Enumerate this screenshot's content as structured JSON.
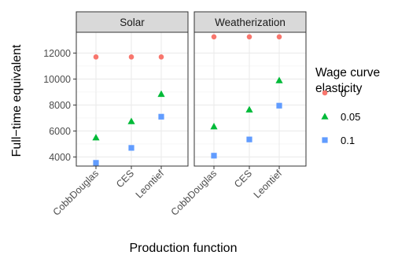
{
  "chart_data": {
    "type": "scatter",
    "facets": [
      "Solar",
      "Weatherization"
    ],
    "categories": [
      "CobbDouglas",
      "CES",
      "Leontief"
    ],
    "xlabel": "Production function",
    "ylabel": "Full−time equivalent",
    "ylim": [
      3300,
      13600
    ],
    "yticks": [
      4000,
      6000,
      8000,
      10000,
      12000
    ],
    "ytick_labels": [
      "4000",
      "6000",
      "8000",
      "10000",
      "12000"
    ],
    "legend": {
      "title": [
        "Wage curve",
        "elasticity"
      ],
      "position": "right",
      "entries": [
        {
          "label": "0",
          "color": "#F8766D",
          "shape": "circle"
        },
        {
          "label": "0.05",
          "color": "#00BA38",
          "shape": "triangle"
        },
        {
          "label": "0.1",
          "color": "#619CFF",
          "shape": "square"
        }
      ]
    },
    "series": [
      {
        "name": "0",
        "panels": {
          "Solar": [
            11700,
            11700,
            11700
          ],
          "Weatherization": [
            13250,
            13250,
            13250
          ]
        }
      },
      {
        "name": "0.05",
        "panels": {
          "Solar": [
            5500,
            6750,
            8850
          ],
          "Weatherization": [
            6350,
            7650,
            9900
          ]
        }
      },
      {
        "name": "0.1",
        "panels": {
          "Solar": [
            3550,
            4700,
            7100
          ],
          "Weatherization": [
            4100,
            5350,
            7950
          ]
        }
      }
    ],
    "grid": true,
    "theme": "bw"
  }
}
